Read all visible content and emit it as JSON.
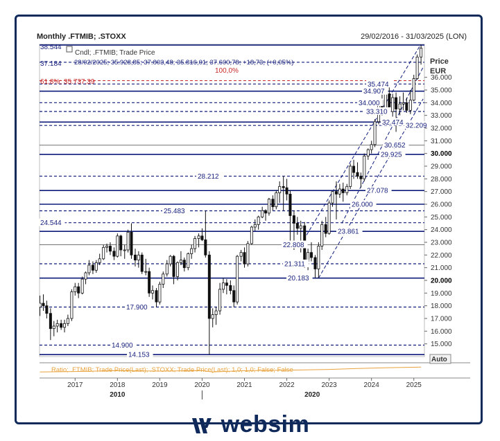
{
  "header": {
    "title": "Monthly .FTMIB; .STOXX",
    "range": "29/02/2016 - 31/03/2025 (LON)"
  },
  "legend": {
    "top_value": "38.544",
    "series_name": "Cndl; .FTMIB; Trade Price",
    "ohlc_value": "37.184",
    "ohlc_text": "28/02/2025; 35.928,85; 37.803,48; 35.816,01; 37.600,78; +18,73; (+0,05%)",
    "fib_100": "100,0%",
    "fib_618": "61,8%; 35.737,39"
  },
  "axis": {
    "price_label": "Price",
    "currency_label": "EUR",
    "auto_label": "Auto",
    "x_years": [
      "2017",
      "2018",
      "2019",
      "2020",
      "2021",
      "2022",
      "2023",
      "2024",
      "2025"
    ],
    "x_major": [
      "2010",
      "2020"
    ]
  },
  "ratio": {
    "text": "Ratio; .FTMIB; Trade Price(Last); .STOXX; Trade Price(Last); 1,0; 1,0; False; False"
  },
  "colors": {
    "navy": "#1a237e",
    "level_blue": "#0d1b7a",
    "red": "#c62828",
    "ratio_orange": "#e8a23c",
    "frame": "#0f2a5a"
  },
  "brand": {
    "name": "websim"
  },
  "chart_data": {
    "type": "candlestick",
    "title": "Monthly .FTMIB; .STOXX",
    "ylabel": "Price EUR",
    "ylim": [
      14000,
      38600
    ],
    "y_ticks": [
      15000,
      16000,
      17000,
      18000,
      19000,
      20000,
      21000,
      22000,
      23000,
      24000,
      25000,
      26000,
      27000,
      28000,
      29000,
      30000,
      31000,
      32000,
      33000,
      34000,
      35000,
      36000
    ],
    "y_bold_ticks": [
      20000,
      30000
    ],
    "xlim": [
      2016.16,
      2025.25
    ],
    "levels": [
      {
        "value": 38544,
        "label": "38.544",
        "style": "solid"
      },
      {
        "value": 37184,
        "label": "37.184",
        "style": "dashed"
      },
      {
        "value": 35737,
        "label": "61,8%; 35.737,39",
        "style": "dashed-red"
      },
      {
        "value": 35474,
        "label": "35.474",
        "style": "dashed"
      },
      {
        "value": 34907,
        "label": "34.907",
        "style": "solid"
      },
      {
        "value": 34000,
        "label": "34.000",
        "style": "dashed"
      },
      {
        "value": 33310,
        "label": "33.310",
        "style": "dashed"
      },
      {
        "value": 32474,
        "label": "32.474",
        "style": "solid"
      },
      {
        "value": 32209,
        "label": "32.209",
        "style": "dashed"
      },
      {
        "value": 30652,
        "label": "30.652",
        "style": "thin"
      },
      {
        "value": 29925,
        "label": "29.925",
        "style": "solid"
      },
      {
        "value": 28212,
        "label": "28.212",
        "style": "dashed"
      },
      {
        "value": 27078,
        "label": "27.078",
        "style": "solid"
      },
      {
        "value": 26000,
        "label": "26.000",
        "style": "solid"
      },
      {
        "value": 25483,
        "label": "25.483",
        "style": "dashed"
      },
      {
        "value": 24544,
        "label": "24.544",
        "style": "dashed"
      },
      {
        "value": 23861,
        "label": "23.861",
        "style": "solid"
      },
      {
        "value": 22808,
        "label": "22.808",
        "style": "thin"
      },
      {
        "value": 21311,
        "label": "21.311",
        "style": "dashed"
      },
      {
        "value": 20183,
        "label": "20.183",
        "style": "solid"
      },
      {
        "value": 17900,
        "label": "17.900",
        "style": "dashed"
      },
      {
        "value": 14900,
        "label": "14.900",
        "style": "dashed"
      },
      {
        "value": 14153,
        "label": "14.153",
        "style": "solid"
      }
    ],
    "channel": [
      {
        "x1": 2022.75,
        "y1": 20183,
        "x2": 2025.22,
        "y2": 34300
      },
      {
        "x1": 2022.4,
        "y1": 23200,
        "x2": 2025.22,
        "y2": 38900
      },
      {
        "x1": 2023.3,
        "y1": 24500,
        "x2": 2025.22,
        "y2": 36800
      }
    ],
    "candles": [
      {
        "x": 2016.17,
        "o": 17900,
        "h": 18800,
        "l": 17200,
        "c": 18200
      },
      {
        "x": 2016.25,
        "o": 18200,
        "h": 18900,
        "l": 17600,
        "c": 18000
      },
      {
        "x": 2016.33,
        "o": 18000,
        "h": 18400,
        "l": 17000,
        "c": 17400
      },
      {
        "x": 2016.42,
        "o": 17400,
        "h": 17800,
        "l": 15300,
        "c": 16200
      },
      {
        "x": 2016.5,
        "o": 16200,
        "h": 16800,
        "l": 15600,
        "c": 16400
      },
      {
        "x": 2016.58,
        "o": 16400,
        "h": 16900,
        "l": 15900,
        "c": 16600
      },
      {
        "x": 2016.67,
        "o": 16600,
        "h": 16900,
        "l": 16100,
        "c": 16300
      },
      {
        "x": 2016.75,
        "o": 16300,
        "h": 16900,
        "l": 15900,
        "c": 16600
      },
      {
        "x": 2016.83,
        "o": 16600,
        "h": 17300,
        "l": 16400,
        "c": 17000
      },
      {
        "x": 2016.92,
        "o": 17000,
        "h": 19300,
        "l": 16800,
        "c": 19100
      },
      {
        "x": 2017.0,
        "o": 19100,
        "h": 19800,
        "l": 18800,
        "c": 19500
      },
      {
        "x": 2017.08,
        "o": 19500,
        "h": 19800,
        "l": 18600,
        "c": 19000
      },
      {
        "x": 2017.17,
        "o": 19000,
        "h": 20300,
        "l": 18900,
        "c": 20100
      },
      {
        "x": 2017.25,
        "o": 20100,
        "h": 20700,
        "l": 19700,
        "c": 20600
      },
      {
        "x": 2017.33,
        "o": 20600,
        "h": 21600,
        "l": 20400,
        "c": 21200
      },
      {
        "x": 2017.42,
        "o": 21200,
        "h": 21500,
        "l": 20500,
        "c": 20800
      },
      {
        "x": 2017.5,
        "o": 20800,
        "h": 21600,
        "l": 20600,
        "c": 21400
      },
      {
        "x": 2017.58,
        "o": 21400,
        "h": 22100,
        "l": 21200,
        "c": 21700
      },
      {
        "x": 2017.67,
        "o": 21700,
        "h": 22800,
        "l": 21600,
        "c": 22600
      },
      {
        "x": 2017.75,
        "o": 22600,
        "h": 22900,
        "l": 22200,
        "c": 22700
      },
      {
        "x": 2017.83,
        "o": 22700,
        "h": 23000,
        "l": 22000,
        "c": 22300
      },
      {
        "x": 2017.92,
        "o": 22300,
        "h": 22600,
        "l": 21600,
        "c": 21900
      },
      {
        "x": 2018.0,
        "o": 21900,
        "h": 23700,
        "l": 21800,
        "c": 23500
      },
      {
        "x": 2018.08,
        "o": 23500,
        "h": 23600,
        "l": 21900,
        "c": 22400
      },
      {
        "x": 2018.17,
        "o": 22400,
        "h": 22800,
        "l": 21700,
        "c": 22400
      },
      {
        "x": 2018.25,
        "o": 22400,
        "h": 24000,
        "l": 22200,
        "c": 23800
      },
      {
        "x": 2018.33,
        "o": 23800,
        "h": 24500,
        "l": 21700,
        "c": 22000
      },
      {
        "x": 2018.42,
        "o": 22000,
        "h": 22500,
        "l": 21100,
        "c": 21600
      },
      {
        "x": 2018.5,
        "o": 21600,
        "h": 22300,
        "l": 21000,
        "c": 22000
      },
      {
        "x": 2018.58,
        "o": 22000,
        "h": 22200,
        "l": 20500,
        "c": 20700
      },
      {
        "x": 2018.67,
        "o": 20700,
        "h": 21700,
        "l": 20400,
        "c": 20700
      },
      {
        "x": 2018.75,
        "o": 20700,
        "h": 21000,
        "l": 18700,
        "c": 19000
      },
      {
        "x": 2018.83,
        "o": 19000,
        "h": 19600,
        "l": 18500,
        "c": 19200
      },
      {
        "x": 2018.92,
        "o": 19200,
        "h": 19400,
        "l": 17900,
        "c": 18300
      },
      {
        "x": 2019.0,
        "o": 18300,
        "h": 19900,
        "l": 18100,
        "c": 19700
      },
      {
        "x": 2019.08,
        "o": 19700,
        "h": 20700,
        "l": 19400,
        "c": 20500
      },
      {
        "x": 2019.17,
        "o": 20500,
        "h": 21600,
        "l": 20300,
        "c": 21300
      },
      {
        "x": 2019.25,
        "o": 21300,
        "h": 22000,
        "l": 21100,
        "c": 21900
      },
      {
        "x": 2019.33,
        "o": 21900,
        "h": 22000,
        "l": 19700,
        "c": 20300
      },
      {
        "x": 2019.42,
        "o": 20300,
        "h": 21500,
        "l": 20000,
        "c": 21400
      },
      {
        "x": 2019.5,
        "o": 21400,
        "h": 22300,
        "l": 21200,
        "c": 21600
      },
      {
        "x": 2019.58,
        "o": 21600,
        "h": 21800,
        "l": 20700,
        "c": 21000
      },
      {
        "x": 2019.67,
        "o": 21000,
        "h": 22200,
        "l": 20800,
        "c": 22100
      },
      {
        "x": 2019.75,
        "o": 22100,
        "h": 22800,
        "l": 21700,
        "c": 22500
      },
      {
        "x": 2019.83,
        "o": 22500,
        "h": 23500,
        "l": 22200,
        "c": 23300
      },
      {
        "x": 2019.92,
        "o": 23300,
        "h": 23700,
        "l": 22600,
        "c": 23500
      },
      {
        "x": 2020.0,
        "o": 23500,
        "h": 24100,
        "l": 23100,
        "c": 23200
      },
      {
        "x": 2020.08,
        "o": 23200,
        "h": 25483,
        "l": 21800,
        "c": 22000
      },
      {
        "x": 2020.17,
        "o": 22000,
        "h": 22300,
        "l": 14153,
        "c": 17000
      },
      {
        "x": 2020.25,
        "o": 17000,
        "h": 17800,
        "l": 16300,
        "c": 17300
      },
      {
        "x": 2020.33,
        "o": 17300,
        "h": 17900,
        "l": 16500,
        "c": 17600
      },
      {
        "x": 2020.42,
        "o": 17600,
        "h": 19800,
        "l": 17300,
        "c": 19300
      },
      {
        "x": 2020.5,
        "o": 19300,
        "h": 20200,
        "l": 19000,
        "c": 19800
      },
      {
        "x": 2020.58,
        "o": 19800,
        "h": 20100,
        "l": 18900,
        "c": 19600
      },
      {
        "x": 2020.67,
        "o": 19600,
        "h": 20000,
        "l": 18900,
        "c": 19200
      },
      {
        "x": 2020.75,
        "o": 19200,
        "h": 19600,
        "l": 17900,
        "c": 18300
      },
      {
        "x": 2020.83,
        "o": 18300,
        "h": 22000,
        "l": 18100,
        "c": 21900
      },
      {
        "x": 2020.92,
        "o": 21900,
        "h": 22400,
        "l": 21500,
        "c": 22200
      },
      {
        "x": 2021.0,
        "o": 22200,
        "h": 22600,
        "l": 21000,
        "c": 21300
      },
      {
        "x": 2021.08,
        "o": 21300,
        "h": 23100,
        "l": 21100,
        "c": 22900
      },
      {
        "x": 2021.17,
        "o": 22900,
        "h": 24300,
        "l": 22800,
        "c": 24200
      },
      {
        "x": 2021.25,
        "o": 24200,
        "h": 24800,
        "l": 23900,
        "c": 24400
      },
      {
        "x": 2021.33,
        "o": 24400,
        "h": 25100,
        "l": 24000,
        "c": 25000
      },
      {
        "x": 2021.42,
        "o": 25000,
        "h": 25800,
        "l": 24900,
        "c": 25500
      },
      {
        "x": 2021.5,
        "o": 25500,
        "h": 25600,
        "l": 24700,
        "c": 25300
      },
      {
        "x": 2021.58,
        "o": 25300,
        "h": 26500,
        "l": 25100,
        "c": 26400
      },
      {
        "x": 2021.67,
        "o": 26400,
        "h": 26700,
        "l": 25500,
        "c": 25800
      },
      {
        "x": 2021.75,
        "o": 25800,
        "h": 27100,
        "l": 25600,
        "c": 26900
      },
      {
        "x": 2021.83,
        "o": 26900,
        "h": 27800,
        "l": 26100,
        "c": 27400
      },
      {
        "x": 2021.92,
        "o": 27400,
        "h": 28212,
        "l": 25500,
        "c": 27300
      },
      {
        "x": 2022.0,
        "o": 27300,
        "h": 28000,
        "l": 26300,
        "c": 26800
      },
      {
        "x": 2022.08,
        "o": 26800,
        "h": 27100,
        "l": 22800,
        "c": 25100
      },
      {
        "x": 2022.17,
        "o": 25100,
        "h": 25500,
        "l": 22400,
        "c": 24500
      },
      {
        "x": 2022.25,
        "o": 24500,
        "h": 25000,
        "l": 23600,
        "c": 24100
      },
      {
        "x": 2022.33,
        "o": 24100,
        "h": 24700,
        "l": 22200,
        "c": 24300
      },
      {
        "x": 2022.42,
        "o": 24300,
        "h": 24600,
        "l": 21000,
        "c": 21500
      },
      {
        "x": 2022.5,
        "o": 21500,
        "h": 22500,
        "l": 20800,
        "c": 22200
      },
      {
        "x": 2022.58,
        "o": 22200,
        "h": 23000,
        "l": 21500,
        "c": 21800
      },
      {
        "x": 2022.67,
        "o": 21800,
        "h": 22000,
        "l": 20183,
        "c": 20900
      },
      {
        "x": 2022.75,
        "o": 20900,
        "h": 23000,
        "l": 20183,
        "c": 22700
      },
      {
        "x": 2022.83,
        "o": 22700,
        "h": 24700,
        "l": 22400,
        "c": 24400
      },
      {
        "x": 2022.92,
        "o": 24400,
        "h": 25000,
        "l": 23400,
        "c": 23700
      },
      {
        "x": 2023.0,
        "o": 23700,
        "h": 26300,
        "l": 23600,
        "c": 26100
      },
      {
        "x": 2023.08,
        "o": 26100,
        "h": 27000,
        "l": 25800,
        "c": 27000
      },
      {
        "x": 2023.17,
        "o": 27000,
        "h": 27800,
        "l": 24800,
        "c": 26800
      },
      {
        "x": 2023.25,
        "o": 26800,
        "h": 27600,
        "l": 26500,
        "c": 27200
      },
      {
        "x": 2023.33,
        "o": 27200,
        "h": 27700,
        "l": 26200,
        "c": 26900
      },
      {
        "x": 2023.42,
        "o": 26900,
        "h": 27600,
        "l": 26700,
        "c": 27400
      },
      {
        "x": 2023.5,
        "o": 27400,
        "h": 29200,
        "l": 27200,
        "c": 29000
      },
      {
        "x": 2023.58,
        "o": 29000,
        "h": 29500,
        "l": 28000,
        "c": 28500
      },
      {
        "x": 2023.67,
        "o": 28500,
        "h": 29300,
        "l": 28000,
        "c": 28200
      },
      {
        "x": 2023.75,
        "o": 28200,
        "h": 28500,
        "l": 27300,
        "c": 28000
      },
      {
        "x": 2023.83,
        "o": 28000,
        "h": 30000,
        "l": 27800,
        "c": 29800
      },
      {
        "x": 2023.92,
        "o": 29800,
        "h": 30400,
        "l": 29500,
        "c": 30300
      },
      {
        "x": 2024.0,
        "o": 30300,
        "h": 31000,
        "l": 30000,
        "c": 30700
      },
      {
        "x": 2024.08,
        "o": 30700,
        "h": 32700,
        "l": 30500,
        "c": 32500
      },
      {
        "x": 2024.17,
        "o": 32500,
        "h": 34300,
        "l": 32300,
        "c": 34200
      },
      {
        "x": 2024.25,
        "o": 34200,
        "h": 34800,
        "l": 33000,
        "c": 33400
      },
      {
        "x": 2024.33,
        "o": 33400,
        "h": 35000,
        "l": 33200,
        "c": 34700
      },
      {
        "x": 2024.42,
        "o": 34700,
        "h": 35300,
        "l": 33100,
        "c": 33300
      },
      {
        "x": 2024.5,
        "o": 33300,
        "h": 34700,
        "l": 32900,
        "c": 34400
      },
      {
        "x": 2024.58,
        "o": 34400,
        "h": 34800,
        "l": 31700,
        "c": 33500
      },
      {
        "x": 2024.67,
        "o": 33500,
        "h": 34500,
        "l": 33000,
        "c": 33900
      },
      {
        "x": 2024.75,
        "o": 33900,
        "h": 34800,
        "l": 33400,
        "c": 34000
      },
      {
        "x": 2024.83,
        "o": 34000,
        "h": 34400,
        "l": 33200,
        "c": 33400
      },
      {
        "x": 2024.92,
        "o": 33400,
        "h": 35000,
        "l": 33100,
        "c": 34200
      },
      {
        "x": 2025.0,
        "o": 34200,
        "h": 36200,
        "l": 34100,
        "c": 35900
      },
      {
        "x": 2025.08,
        "o": 35900,
        "h": 37803,
        "l": 35816,
        "c": 37601
      },
      {
        "x": 2025.17,
        "o": 37601,
        "h": 38544,
        "l": 37000,
        "c": 38300
      }
    ],
    "ratio_series": [
      [
        2016.17,
        0.4
      ],
      [
        2017.0,
        0.45
      ],
      [
        2018.0,
        0.55
      ],
      [
        2019.0,
        0.5
      ],
      [
        2020.0,
        0.55
      ],
      [
        2020.25,
        0.4
      ],
      [
        2021.0,
        0.55
      ],
      [
        2022.0,
        0.6
      ],
      [
        2023.0,
        0.7
      ],
      [
        2023.5,
        0.78
      ],
      [
        2024.0,
        0.85
      ],
      [
        2024.5,
        0.92
      ],
      [
        2025.17,
        0.98
      ]
    ]
  }
}
